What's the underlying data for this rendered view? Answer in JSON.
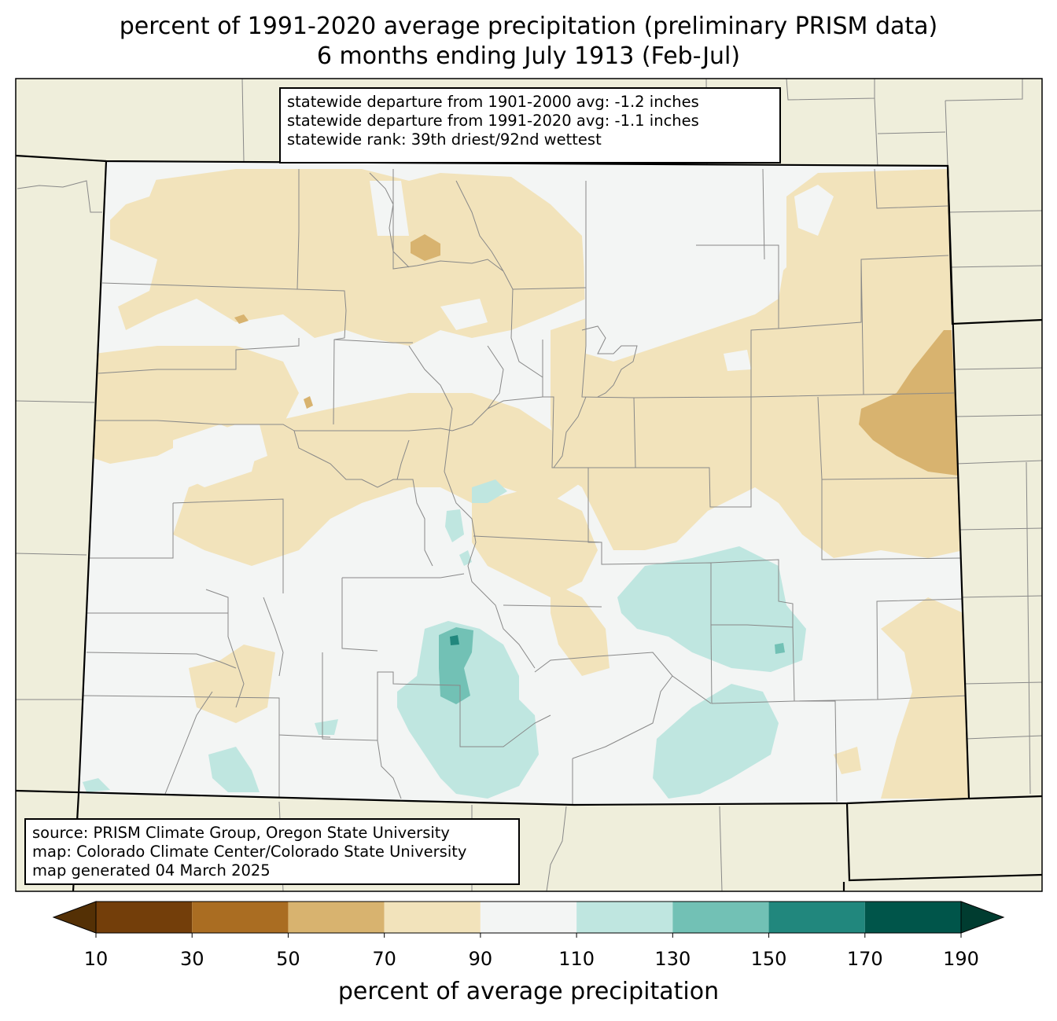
{
  "title": {
    "line1": "percent of 1991-2020 average precipitation (preliminary PRISM data)",
    "line2": "6 months ending July 1913 (Feb-Jul)"
  },
  "stats": {
    "line1": "statewide departure from 1901-2000 avg: -1.2 inches",
    "line2": "statewide departure from 1991-2020 avg: -1.1 inches",
    "line3": "statewide rank: 39th driest/92nd wettest"
  },
  "credit": {
    "line1": "source: PRISM Climate Group, Oregon State University",
    "line2": "map: Colorado Climate Center/Colorado State University",
    "line3": "map generated 04 March 2025"
  },
  "colorbar": {
    "label": "percent of average precipitation",
    "ticks": [
      "10",
      "30",
      "50",
      "70",
      "90",
      "110",
      "130",
      "150",
      "170",
      "190"
    ],
    "under_color": "#543005",
    "over_color": "#003c30",
    "bins": [
      {
        "range": "10-30",
        "color": "#733e0a"
      },
      {
        "range": "30-50",
        "color": "#aa6d22"
      },
      {
        "range": "50-70",
        "color": "#d8b36f"
      },
      {
        "range": "70-90",
        "color": "#f2e3bb"
      },
      {
        "range": "90-110",
        "color": "#f3f5f4"
      },
      {
        "range": "110-130",
        "color": "#bfe6e0"
      },
      {
        "range": "130-150",
        "color": "#72c1b5"
      },
      {
        "range": "150-170",
        "color": "#21877d"
      },
      {
        "range": "170-190",
        "color": "#00554a"
      }
    ]
  },
  "colors": {
    "outside_state": "#efeedb",
    "state_boundary": "#000000",
    "county_line": "#888888"
  }
}
